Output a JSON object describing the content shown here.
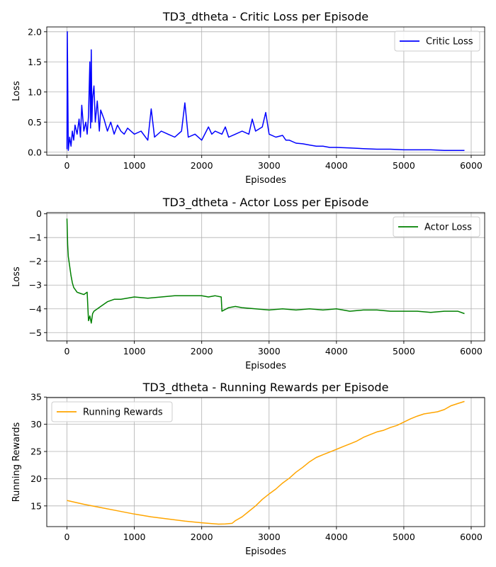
{
  "chart_data": [
    {
      "type": "line",
      "title": "TD3_dtheta - Critic Loss per Episode",
      "xlabel": "Episodes",
      "ylabel": "Loss",
      "xlim": [
        -300,
        6200
      ],
      "ylim": [
        -0.05,
        2.08
      ],
      "xticks": [
        0,
        1000,
        2000,
        3000,
        4000,
        5000,
        6000
      ],
      "yticks": [
        0.0,
        0.5,
        1.0,
        1.5,
        2.0
      ],
      "ytick_labels": [
        "0.0",
        "0.5",
        "1.0",
        "1.5",
        "2.0"
      ],
      "grid": true,
      "legend_position": "upper right",
      "series": [
        {
          "name": "Critic Loss",
          "color": "#0000ff",
          "x": [
            0,
            5,
            20,
            40,
            60,
            80,
            100,
            120,
            150,
            180,
            200,
            220,
            250,
            280,
            300,
            320,
            340,
            350,
            360,
            370,
            380,
            400,
            420,
            450,
            480,
            500,
            550,
            600,
            650,
            700,
            750,
            800,
            850,
            900,
            1000,
            1100,
            1200,
            1250,
            1300,
            1400,
            1500,
            1600,
            1700,
            1750,
            1800,
            1900,
            2000,
            2100,
            2150,
            2200,
            2300,
            2350,
            2400,
            2500,
            2600,
            2700,
            2750,
            2800,
            2900,
            2950,
            3000,
            3100,
            3200,
            3250,
            3300,
            3400,
            3500,
            3600,
            3700,
            3800,
            3900,
            4000,
            4200,
            4400,
            4600,
            4800,
            5000,
            5200,
            5400,
            5600,
            5800,
            5900
          ],
          "y": [
            0.05,
            2.0,
            0.03,
            0.25,
            0.1,
            0.35,
            0.2,
            0.45,
            0.3,
            0.55,
            0.25,
            0.78,
            0.35,
            0.5,
            0.3,
            0.6,
            1.5,
            0.4,
            1.7,
            0.5,
            0.9,
            1.1,
            0.5,
            0.85,
            0.35,
            0.7,
            0.55,
            0.35,
            0.5,
            0.3,
            0.45,
            0.35,
            0.3,
            0.4,
            0.3,
            0.35,
            0.2,
            0.72,
            0.25,
            0.35,
            0.3,
            0.25,
            0.35,
            0.82,
            0.25,
            0.3,
            0.2,
            0.42,
            0.3,
            0.35,
            0.3,
            0.42,
            0.25,
            0.3,
            0.35,
            0.3,
            0.55,
            0.35,
            0.42,
            0.66,
            0.3,
            0.25,
            0.28,
            0.2,
            0.2,
            0.15,
            0.14,
            0.12,
            0.1,
            0.1,
            0.08,
            0.08,
            0.07,
            0.06,
            0.05,
            0.05,
            0.04,
            0.04,
            0.04,
            0.03,
            0.03,
            0.03
          ]
        }
      ]
    },
    {
      "type": "line",
      "title": "TD3_dtheta - Actor Loss per Episode",
      "xlabel": "Episodes",
      "ylabel": "Loss",
      "xlim": [
        -300,
        6200
      ],
      "ylim": [
        -5.35,
        0.05
      ],
      "xticks": [
        0,
        1000,
        2000,
        3000,
        4000,
        5000,
        6000
      ],
      "yticks": [
        0,
        -1,
        -2,
        -3,
        -4,
        -5
      ],
      "ytick_labels": [
        "0",
        "−1",
        "−2",
        "−3",
        "−4",
        "−5"
      ],
      "grid": true,
      "legend_position": "upper right",
      "series": [
        {
          "name": "Actor Loss",
          "color": "#008000",
          "x": [
            0,
            10,
            20,
            40,
            60,
            80,
            100,
            150,
            200,
            250,
            300,
            320,
            340,
            360,
            380,
            400,
            500,
            600,
            700,
            800,
            1000,
            1200,
            1400,
            1600,
            1800,
            2000,
            2100,
            2200,
            2290,
            2300,
            2400,
            2500,
            2600,
            2800,
            3000,
            3200,
            3400,
            3600,
            3800,
            4000,
            4200,
            4400,
            4600,
            4800,
            5000,
            5200,
            5400,
            5600,
            5800,
            5900
          ],
          "y": [
            -0.2,
            -1.3,
            -1.8,
            -2.2,
            -2.6,
            -2.9,
            -3.1,
            -3.3,
            -3.35,
            -3.4,
            -3.3,
            -4.5,
            -4.3,
            -4.6,
            -4.2,
            -4.1,
            -3.9,
            -3.7,
            -3.6,
            -3.6,
            -3.5,
            -3.55,
            -3.5,
            -3.45,
            -3.45,
            -3.45,
            -3.5,
            -3.45,
            -3.5,
            -4.1,
            -3.95,
            -3.9,
            -3.95,
            -4.0,
            -4.05,
            -4.0,
            -4.05,
            -4.0,
            -4.05,
            -4.0,
            -4.1,
            -4.05,
            -4.05,
            -4.1,
            -4.1,
            -4.1,
            -4.15,
            -4.1,
            -4.1,
            -4.2
          ]
        }
      ]
    },
    {
      "type": "line",
      "title": "TD3_dtheta - Running Rewards per Episode",
      "xlabel": "Episodes",
      "ylabel": "Running Rewards",
      "xlim": [
        -300,
        6200
      ],
      "ylim": [
        11.2,
        34.9
      ],
      "xticks": [
        0,
        1000,
        2000,
        3000,
        4000,
        5000,
        6000
      ],
      "yticks": [
        15,
        20,
        25,
        30,
        35
      ],
      "ytick_labels": [
        "15",
        "20",
        "25",
        "30",
        "35"
      ],
      "grid": true,
      "legend_position": "upper left",
      "series": [
        {
          "name": "Running Rewards",
          "color": "#ffa500",
          "x": [
            0,
            250,
            500,
            750,
            1000,
            1250,
            1500,
            1750,
            2000,
            2250,
            2350,
            2450,
            2500,
            2600,
            2700,
            2800,
            2900,
            3000,
            3100,
            3200,
            3300,
            3400,
            3500,
            3600,
            3700,
            3800,
            3900,
            4000,
            4100,
            4200,
            4300,
            4400,
            4500,
            4600,
            4700,
            4800,
            4900,
            5000,
            5100,
            5200,
            5300,
            5400,
            5500,
            5600,
            5700,
            5800,
            5900
          ],
          "y": [
            16.0,
            15.3,
            14.7,
            14.1,
            13.5,
            13.0,
            12.6,
            12.2,
            11.9,
            11.65,
            11.7,
            11.8,
            12.3,
            13.0,
            14.0,
            15.0,
            16.2,
            17.2,
            18.1,
            19.2,
            20.1,
            21.2,
            22.1,
            23.1,
            23.9,
            24.4,
            24.9,
            25.4,
            25.9,
            26.4,
            26.9,
            27.6,
            28.1,
            28.6,
            28.9,
            29.4,
            29.8,
            30.4,
            31.0,
            31.5,
            31.9,
            32.1,
            32.3,
            32.7,
            33.4,
            33.8,
            34.2
          ]
        }
      ]
    }
  ]
}
